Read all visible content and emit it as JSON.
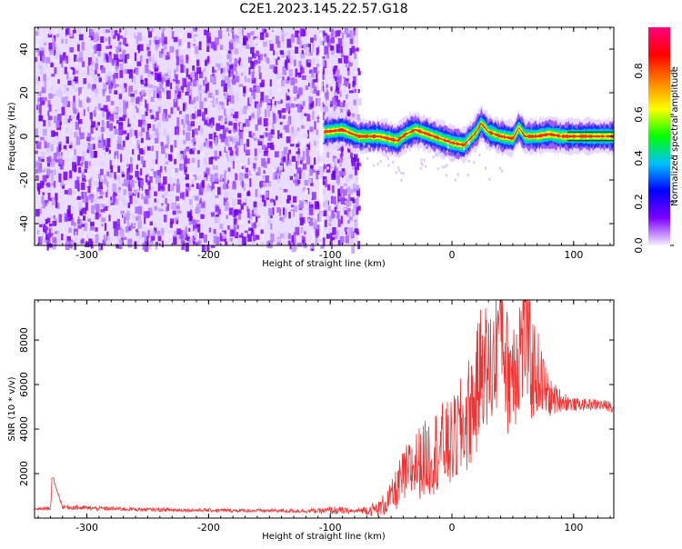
{
  "title": "C2E1.2023.145.22.57.G18",
  "chart_data": [
    {
      "type": "heatmap",
      "title": "",
      "xlabel": "Height of straight line (km)",
      "ylabel": "Frequency (Hz)",
      "xlim": [
        -343,
        133
      ],
      "ylim": [
        -50,
        50
      ],
      "xticks": [
        -300,
        -200,
        -100,
        0,
        100
      ],
      "yticks": [
        -40,
        -20,
        0,
        20,
        40
      ],
      "colorbar": {
        "label": "Normalized spectral amplitude",
        "range": [
          0,
          1
        ],
        "ticks": [
          "0.0",
          "0.2",
          "0.4",
          "0.6",
          "0.8"
        ],
        "colors": [
          "#f5f0ff",
          "#7f00ff",
          "#0000ff",
          "#00bfff",
          "#00ff00",
          "#ffff00",
          "#ff8000",
          "#ff0000",
          "#ff0080"
        ]
      },
      "noise_region": {
        "x": [
          -343,
          -77
        ],
        "y": [
          -50,
          50
        ]
      },
      "signal_ridge": {
        "x": [
          -105,
          -90,
          -77,
          -60,
          -45,
          -38,
          -30,
          -20,
          -10,
          0,
          10,
          20,
          24,
          30,
          40,
          50,
          55,
          60,
          70,
          80,
          90,
          100,
          110,
          120,
          133
        ],
        "y": [
          2,
          3,
          0,
          0,
          -2,
          1,
          3,
          1,
          -1,
          -3,
          -4,
          2,
          6,
          2,
          0,
          -1,
          4,
          0,
          0,
          1,
          0,
          0,
          0,
          0,
          0
        ]
      }
    },
    {
      "type": "line",
      "title": "",
      "xlabel": "Height of straight line (km)",
      "ylabel": "SNR (10 * v/v)",
      "xlim": [
        -343,
        133
      ],
      "ylim": [
        0,
        9800
      ],
      "xticks": [
        -300,
        -200,
        -100,
        0,
        100
      ],
      "yticks": [
        2000,
        4000,
        6000,
        8000
      ],
      "color": "#ee3333",
      "x": [
        -343,
        -330,
        -328,
        -320,
        -300,
        -250,
        -200,
        -150,
        -110,
        -95,
        -80,
        -75,
        -60,
        -50,
        -40,
        -30,
        -20,
        -10,
        0,
        10,
        20,
        25,
        30,
        35,
        40,
        45,
        50,
        55,
        60,
        65,
        70,
        80,
        90,
        100,
        110,
        120,
        133
      ],
      "y": [
        400,
        450,
        1800,
        500,
        450,
        380,
        350,
        330,
        320,
        350,
        300,
        350,
        400,
        900,
        1800,
        2400,
        2700,
        3200,
        3300,
        4200,
        5500,
        7200,
        6500,
        7000,
        9500,
        6600,
        6900,
        7500,
        8700,
        6800,
        6600,
        5400,
        5300,
        5100,
        5100,
        5100,
        5000
      ],
      "spread": [
        50,
        80,
        0,
        100,
        100,
        80,
        80,
        80,
        100,
        200,
        80,
        120,
        400,
        700,
        1300,
        1600,
        1800,
        2000,
        2000,
        2500,
        2800,
        3000,
        2800,
        3000,
        3200,
        2900,
        3000,
        3200,
        3500,
        2600,
        2000,
        900,
        500,
        300,
        250,
        250,
        250
      ]
    }
  ]
}
